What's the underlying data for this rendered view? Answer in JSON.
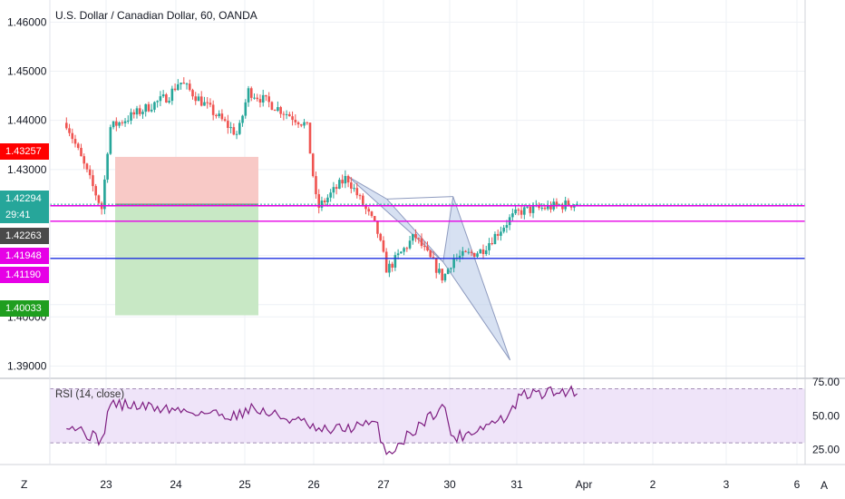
{
  "title": "U.S. Dollar / Canadian Dollar, 60, OANDA",
  "rsi_title": "RSI (14, close)",
  "corner_left": "Z",
  "corner_right": "A",
  "colors": {
    "up": "#26a69a",
    "down": "#ef5350",
    "grid": "#eef1f5",
    "rsi_line": "#7e1e81",
    "rsi_band": "#e9dbf7",
    "magenta": "#e600e6",
    "blue": "#1e2fe0",
    "pattern_fill": "#b7c8e8",
    "pattern_line": "#8e9bbf",
    "stop_zone": "#f8c9c6",
    "target_zone": "#c8e8c5"
  },
  "price_tags": [
    {
      "label": "1.43257",
      "color": "#ff0000"
    },
    {
      "label": "1.42294",
      "color": "#26a69a"
    },
    {
      "label": "29:41",
      "color": "#26a69a"
    },
    {
      "label": "1.42263",
      "color": "#4a4a4a"
    },
    {
      "label": "1.41948",
      "color": "#e600e6"
    },
    {
      "label": "1.41190",
      "color": "#e600e6"
    },
    {
      "label": "1.40033",
      "color": "#1f9e1f"
    }
  ],
  "chart_data": [
    {
      "type": "candlestick",
      "title": "U.S. Dollar / Canadian Dollar, 60, OANDA",
      "y_ticks": [
        "1.46000",
        "1.45000",
        "1.44000",
        "1.43000",
        "1.40000",
        "1.39000"
      ],
      "ylim": [
        1.3875,
        1.4645
      ],
      "x_ticks": [
        "23",
        "24",
        "25",
        "26",
        "27",
        "30",
        "31",
        "Apr",
        "2",
        "3",
        "6"
      ],
      "anchors": [
        {
          "x": "22",
          "price": 1.4395
        },
        {
          "x": "22",
          "price": 1.422
        },
        {
          "x": "23",
          "price": 1.4385
        },
        {
          "x": "23",
          "price": 1.445
        },
        {
          "x": "24",
          "price": 1.448
        },
        {
          "x": "24",
          "price": 1.437
        },
        {
          "x": "25",
          "price": 1.446
        },
        {
          "x": "25",
          "price": 1.439
        },
        {
          "x": "26",
          "price": 1.422
        },
        {
          "x": "26",
          "price": 1.4285
        },
        {
          "x": "26",
          "price": 1.418
        },
        {
          "x": "27",
          "price": 1.4095
        },
        {
          "x": "27",
          "price": 1.4165
        },
        {
          "x": "27",
          "price": 1.4078
        },
        {
          "x": "30",
          "price": 1.4118
        },
        {
          "x": "30",
          "price": 1.4135
        },
        {
          "x": "30",
          "price": 1.42
        },
        {
          "x": "31",
          "price": 1.4215
        },
        {
          "x": "31",
          "price": 1.4232
        }
      ],
      "candle_count": 175,
      "horizontal_lines": [
        {
          "price": 1.42263,
          "color": "#e600e6",
          "style": "solid"
        },
        {
          "price": 1.41948,
          "color": "#e600e6",
          "style": "solid"
        },
        {
          "price": 1.4119,
          "color": "#1e2fe0",
          "style": "solid"
        },
        {
          "price": 1.42294,
          "color": "#26a69a",
          "style": "dotted"
        }
      ],
      "position_tool": {
        "x_start": "23",
        "x_end": "25",
        "stop": 1.43257,
        "entry": 1.42294,
        "target": 1.40033
      },
      "harmonic_pattern": [
        {
          "x": "26",
          "price": 1.4285
        },
        {
          "x": "27",
          "price": 1.424
        },
        {
          "x": "30",
          "price": 1.4245
        },
        {
          "x": "30",
          "price": 1.3912
        },
        {
          "x": "27",
          "price": 1.4112
        }
      ],
      "grid": true,
      "legend": "none"
    },
    {
      "type": "line",
      "title": "RSI (14, close)",
      "y_ticks": [
        "75.00",
        "50.00",
        "25.00"
      ],
      "ylim": [
        14,
        77
      ],
      "bands": [
        30,
        70
      ],
      "x_ticks": [
        "23",
        "24",
        "25",
        "26",
        "27",
        "30",
        "31",
        "Apr",
        "2",
        "3",
        "6"
      ],
      "anchors": [
        {
          "x": "22",
          "value": 45
        },
        {
          "x": "22",
          "value": 31
        },
        {
          "x": "23",
          "value": 59
        },
        {
          "x": "23",
          "value": 55
        },
        {
          "x": "24",
          "value": 54
        },
        {
          "x": "24",
          "value": 50
        },
        {
          "x": "25",
          "value": 56
        },
        {
          "x": "25",
          "value": 44
        },
        {
          "x": "26",
          "value": 38
        },
        {
          "x": "26",
          "value": 44
        },
        {
          "x": "27",
          "value": 21
        },
        {
          "x": "27",
          "value": 40
        },
        {
          "x": "27",
          "value": 58
        },
        {
          "x": "30",
          "value": 33
        },
        {
          "x": "30",
          "value": 50
        },
        {
          "x": "31",
          "value": 65
        },
        {
          "x": "31",
          "value": 69
        }
      ],
      "legend": "none"
    }
  ]
}
